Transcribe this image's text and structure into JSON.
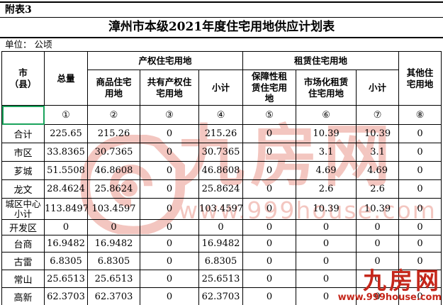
{
  "meta": {
    "note": "附表3",
    "title": "漳州市本级2021年度住宅用地供应计划表",
    "unit": "单位： 公顷"
  },
  "table": {
    "group_headers": {
      "city": "市\n（县）",
      "total": "总量",
      "property": "产权住宅用地",
      "rental": "租赁住宅用地",
      "other": "其他住\n宅用地"
    },
    "sub_headers": {
      "commodity": "商品住宅\n用地",
      "shared": "共有产权住\n宅用地",
      "property_subtotal": "小计",
      "affordable_rental": "保障性租\n赁住宅用\n地",
      "market_rental": "市场化租赁\n住宅用地",
      "rental_subtotal": "小计"
    },
    "index_row": [
      "",
      "①",
      "②",
      "③",
      "④",
      "⑤",
      "⑥",
      "⑦",
      "⑧"
    ],
    "rows": [
      {
        "name": "合计",
        "values": [
          "225.65",
          "215.26",
          "0",
          "215.26",
          "0",
          "10.39",
          "10.39",
          "0"
        ]
      },
      {
        "name": "市区",
        "values": [
          "33.8365",
          "30.7365",
          "0",
          "30.7365",
          "0",
          "3.1",
          "3.1",
          "0"
        ]
      },
      {
        "name": "芗城",
        "values": [
          "51.5508",
          "46.8608",
          "0",
          "46.8608",
          "0",
          "4.69",
          "4.69",
          "0"
        ]
      },
      {
        "name": "龙文",
        "values": [
          "28.4624",
          "25.8624",
          "0",
          "25.8624",
          "0",
          "2.6",
          "2.6",
          "0"
        ]
      },
      {
        "name": "城区中心小计",
        "values": [
          "113.8497",
          "103.4597",
          "0",
          "103.4597",
          "0",
          "10.39",
          "10.39",
          "0"
        ]
      },
      {
        "name": "开发区",
        "values": [
          "0",
          "0",
          "0",
          "0",
          "0",
          "0",
          "0",
          "0"
        ]
      },
      {
        "name": "台商",
        "values": [
          "16.9482",
          "16.9482",
          "0",
          "16.9482",
          "0",
          "0",
          "0",
          "0"
        ]
      },
      {
        "name": "古雷",
        "values": [
          "6.8305",
          "6.8305",
          "0",
          "6.8305",
          "0",
          "0",
          "0",
          "0"
        ]
      },
      {
        "name": "常山",
        "values": [
          "25.6513",
          "25.6513",
          "0",
          "25.6513",
          "0",
          "0",
          "0",
          "0"
        ]
      },
      {
        "name": "高新",
        "values": [
          "62.3703",
          "62.3703",
          "0",
          "62.3703",
          "0",
          "0",
          "0",
          "0"
        ]
      }
    ]
  },
  "watermark_center": {
    "brand": "九房网",
    "url": "www.999house.com",
    "color": "#e4796a"
  },
  "watermark_corner": {
    "brand": "九房网",
    "url": "www.999house.com",
    "color": "#c5271b"
  },
  "selection": {
    "color": "#1aa35c"
  }
}
